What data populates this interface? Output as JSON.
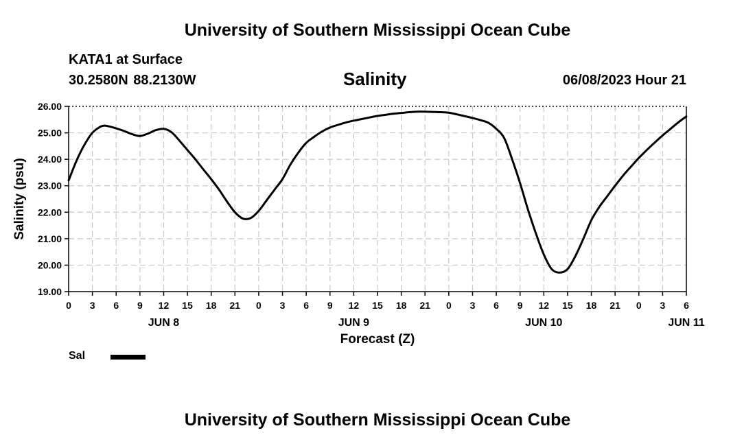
{
  "header": {
    "title": "University of Southern Mississippi Ocean Cube",
    "station": "KATA1 at Surface",
    "coordinates": "30.2580N  88.2130W",
    "variable_title": "Salinity",
    "datetime": "06/08/2023 Hour 21"
  },
  "footer": {
    "title": "University of Southern Mississippi Ocean Cube"
  },
  "legend": {
    "label": "Sal"
  },
  "chart_data": {
    "type": "line",
    "title": "Salinity",
    "xlabel": "Forecast (Z)",
    "ylabel": "Salinity (psu)",
    "ylim": [
      19.0,
      26.0
    ],
    "y_ticks": [
      "19.00",
      "20.00",
      "21.00",
      "22.00",
      "23.00",
      "24.00",
      "25.00",
      "26.00"
    ],
    "xlim": [
      0,
      78
    ],
    "x_tick_hours": [
      0,
      3,
      6,
      9,
      12,
      15,
      18,
      21,
      24,
      27,
      30,
      33,
      36,
      39,
      42,
      45,
      48,
      51,
      54,
      57,
      60,
      63,
      66,
      69,
      72,
      75,
      78
    ],
    "x_tick_labels": [
      "0",
      "3",
      "6",
      "9",
      "12",
      "15",
      "18",
      "21",
      "0",
      "3",
      "6",
      "9",
      "12",
      "15",
      "18",
      "21",
      "0",
      "3",
      "6",
      "9",
      "12",
      "15",
      "18",
      "21",
      "0",
      "3",
      "6"
    ],
    "day_labels": [
      {
        "label": "JUN 8",
        "hour": 12
      },
      {
        "label": "JUN 9",
        "hour": 36
      },
      {
        "label": "JUN 10",
        "hour": 60
      },
      {
        "label": "JUN 11",
        "hour": 78
      }
    ],
    "grid": true,
    "series": [
      {
        "name": "Sal",
        "color": "#000000",
        "x": [
          0,
          1,
          2,
          3,
          4,
          4.5,
          5,
          6,
          7,
          8,
          9,
          10,
          11,
          12,
          13,
          14,
          15,
          16,
          17,
          18,
          19,
          20,
          21,
          22,
          23,
          24,
          25,
          26,
          27,
          28,
          29,
          30,
          31,
          32,
          33,
          34,
          35,
          36,
          37,
          38,
          39,
          40,
          41,
          42,
          43,
          44,
          45,
          46,
          47,
          48,
          49,
          50,
          51,
          52,
          53,
          54,
          55,
          56,
          57,
          58,
          59,
          60,
          61,
          62,
          63,
          64,
          65,
          66,
          67,
          68,
          69,
          70,
          71,
          72,
          73,
          74,
          75,
          76,
          77,
          78
        ],
        "values": [
          23.2,
          23.95,
          24.55,
          25.0,
          25.23,
          25.27,
          25.25,
          25.17,
          25.07,
          24.95,
          24.88,
          24.97,
          25.1,
          25.15,
          25.02,
          24.7,
          24.35,
          24.0,
          23.62,
          23.25,
          22.85,
          22.4,
          22.0,
          21.76,
          21.78,
          22.05,
          22.45,
          22.85,
          23.25,
          23.8,
          24.25,
          24.62,
          24.85,
          25.05,
          25.2,
          25.3,
          25.39,
          25.46,
          25.52,
          25.58,
          25.64,
          25.68,
          25.72,
          25.75,
          25.78,
          25.8,
          25.8,
          25.79,
          25.78,
          25.76,
          25.7,
          25.63,
          25.56,
          25.48,
          25.38,
          25.15,
          24.8,
          24.0,
          23.1,
          22.1,
          21.2,
          20.4,
          19.85,
          19.72,
          19.85,
          20.35,
          21.0,
          21.7,
          22.2,
          22.6,
          23.0,
          23.38,
          23.72,
          24.05,
          24.35,
          24.63,
          24.9,
          25.15,
          25.4,
          25.62
        ]
      }
    ]
  }
}
